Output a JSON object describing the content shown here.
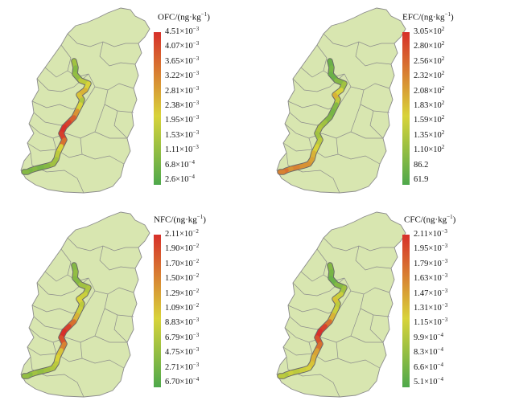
{
  "colors": {
    "province_fill": "#d8e6b0",
    "province_border": "#8c8c8c",
    "scale_low": "#4ea84b",
    "scale_mid": "#d8d33a",
    "scale_high": "#d7302a"
  },
  "panels": [
    {
      "id": "ofc",
      "legend": {
        "title": "OFC/(ng·kg",
        "title_exp": "−1",
        "title_close": ")",
        "ticks": [
          {
            "m": "4.51",
            "e": "−3"
          },
          {
            "m": "4.07",
            "e": "−3"
          },
          {
            "m": "3.65",
            "e": "−3"
          },
          {
            "m": "3.22",
            "e": "−3"
          },
          {
            "m": "2.81",
            "e": "−3"
          },
          {
            "m": "2.38",
            "e": "−3"
          },
          {
            "m": "1.95",
            "e": "−3"
          },
          {
            "m": "1.53",
            "e": "−3"
          },
          {
            "m": "1.11",
            "e": "−3"
          },
          {
            "m": "6.8",
            "e": "−4"
          },
          {
            "m": "2.6",
            "e": "−4"
          }
        ]
      },
      "river_levels": [
        0.3,
        0.2,
        0.25,
        0.4,
        0.5,
        0.6,
        0.55,
        0.35,
        0.5,
        0.7,
        0.85,
        0.95,
        1.0,
        0.95,
        0.8,
        0.5,
        0.4,
        0.3,
        0.3,
        0.2,
        0.15,
        0.2,
        0.15,
        0.2,
        0.1
      ]
    },
    {
      "id": "efc",
      "legend": {
        "title": "EFC/(ng·kg",
        "title_exp": "−1",
        "title_close": ")",
        "ticks": [
          {
            "m": "3.05",
            "e": "2"
          },
          {
            "m": "2.80",
            "e": "2"
          },
          {
            "m": "2.56",
            "e": "2"
          },
          {
            "m": "2.32",
            "e": "2"
          },
          {
            "m": "2.08",
            "e": "2"
          },
          {
            "m": "1.83",
            "e": "2"
          },
          {
            "m": "1.59",
            "e": "2"
          },
          {
            "m": "1.35",
            "e": "2"
          },
          {
            "m": "1.10",
            "e": "2"
          },
          {
            "m": "86.2",
            "e": ""
          },
          {
            "m": "61.9",
            "e": ""
          }
        ]
      },
      "river_levels": [
        0.1,
        0.15,
        0.1,
        0.2,
        0.3,
        0.5,
        0.6,
        0.4,
        0.2,
        0.15,
        0.2,
        0.3,
        0.35,
        0.3,
        0.4,
        0.5,
        0.6,
        0.65,
        0.7,
        0.7,
        0.75,
        0.7,
        0.8,
        0.75,
        0.7
      ]
    },
    {
      "id": "nfc",
      "legend": {
        "title": "NFC/(ng·kg",
        "title_exp": "−1",
        "title_close": ")",
        "ticks": [
          {
            "m": "2.11",
            "e": "−2"
          },
          {
            "m": "1.90",
            "e": "−2"
          },
          {
            "m": "1.70",
            "e": "−2"
          },
          {
            "m": "1.50",
            "e": "−2"
          },
          {
            "m": "1.29",
            "e": "−2"
          },
          {
            "m": "1.09",
            "e": "−2"
          },
          {
            "m": "8.83",
            "e": "−3"
          },
          {
            "m": "6.79",
            "e": "−3"
          },
          {
            "m": "4.75",
            "e": "−3"
          },
          {
            "m": "2.71",
            "e": "−3"
          },
          {
            "m": "6.70",
            "e": "−4"
          }
        ]
      },
      "river_levels": [
        0.2,
        0.25,
        0.2,
        0.3,
        0.35,
        0.45,
        0.5,
        0.4,
        0.45,
        0.6,
        0.8,
        0.95,
        1.0,
        0.9,
        0.75,
        0.55,
        0.5,
        0.4,
        0.35,
        0.3,
        0.25,
        0.3,
        0.2,
        0.25,
        0.2
      ]
    },
    {
      "id": "cfc",
      "legend": {
        "title": "CFC/(ng·kg",
        "title_exp": "−1",
        "title_close": ")",
        "ticks": [
          {
            "m": "2.11",
            "e": "−3"
          },
          {
            "m": "1.95",
            "e": "−3"
          },
          {
            "m": "1.79",
            "e": "−3"
          },
          {
            "m": "1.63",
            "e": "−3"
          },
          {
            "m": "1.47",
            "e": "−3"
          },
          {
            "m": "1.31",
            "e": "−3"
          },
          {
            "m": "1.15",
            "e": "−3"
          },
          {
            "m": "9.9",
            "e": "−4"
          },
          {
            "m": "8.3",
            "e": "−4"
          },
          {
            "m": "6.6",
            "e": "−4"
          },
          {
            "m": "5.1",
            "e": "−4"
          }
        ]
      },
      "river_levels": [
        0.2,
        0.15,
        0.1,
        0.2,
        0.3,
        0.45,
        0.55,
        0.4,
        0.45,
        0.6,
        0.8,
        0.95,
        1.0,
        0.9,
        0.8,
        0.65,
        0.6,
        0.55,
        0.5,
        0.45,
        0.4,
        0.45,
        0.35,
        0.4,
        0.3
      ]
    }
  ]
}
